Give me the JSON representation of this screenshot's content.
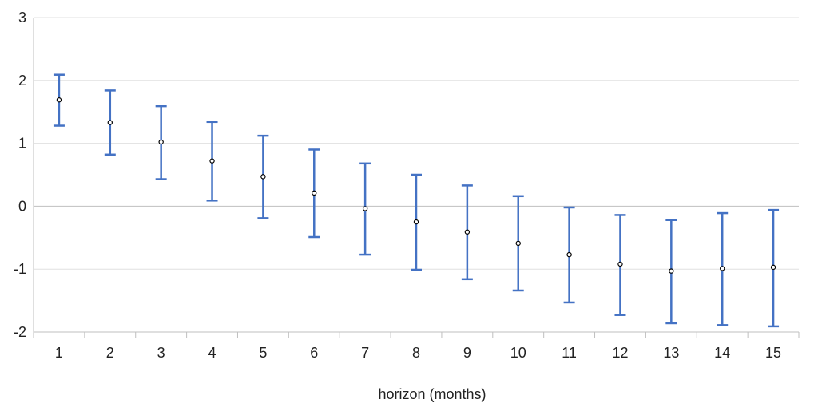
{
  "chart_data": {
    "type": "scatter",
    "title": "",
    "xlabel": "horizon (months)",
    "ylabel": "",
    "categories": [
      "1",
      "2",
      "3",
      "4",
      "5",
      "6",
      "7",
      "8",
      "9",
      "10",
      "11",
      "12",
      "13",
      "14",
      "15"
    ],
    "ylim": [
      -2,
      3
    ],
    "yticks": [
      "-2",
      "-1",
      "0",
      "1",
      "2",
      "3"
    ],
    "grid": true,
    "series": [
      {
        "values": [
          1.69,
          1.33,
          1.02,
          0.72,
          0.47,
          0.21,
          -0.04,
          -0.25,
          -0.41,
          -0.59,
          -0.77,
          -0.92,
          -1.03,
          -0.99,
          -0.97
        ],
        "lower": [
          1.28,
          0.82,
          0.43,
          0.09,
          -0.19,
          -0.49,
          -0.77,
          -1.01,
          -1.16,
          -1.34,
          -1.53,
          -1.73,
          -1.86,
          -1.89,
          -1.91
        ],
        "upper": [
          2.09,
          1.84,
          1.59,
          1.34,
          1.12,
          0.9,
          0.68,
          0.5,
          0.33,
          0.16,
          -0.02,
          -0.14,
          -0.22,
          -0.11,
          -0.06
        ]
      }
    ],
    "colors": {
      "error_bar": "#4472C4",
      "marker": "#000000",
      "grid": "#E0E0E0",
      "axis": "#BFBFBF"
    }
  }
}
